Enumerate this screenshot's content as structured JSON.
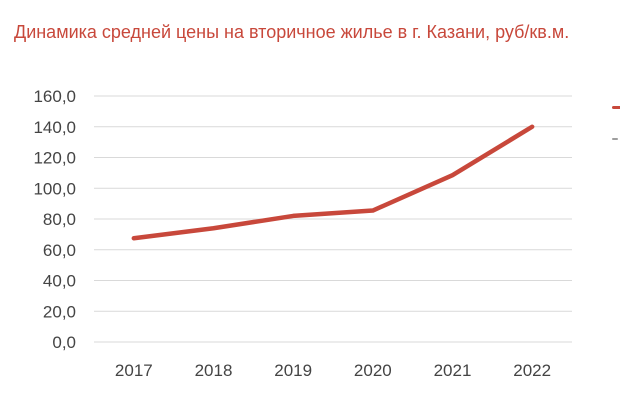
{
  "chart_data": {
    "type": "line",
    "title": "Динамика средней цены на вторичное жилье в г. Казани, руб/кв.м.",
    "xlabel": "",
    "ylabel": "",
    "categories": [
      "2017",
      "2018",
      "2019",
      "2020",
      "2021",
      "2022"
    ],
    "series": [
      {
        "values": [
          67.5,
          74.0,
          82.0,
          85.5,
          108.5,
          140.0
        ],
        "color": "#c8483b"
      }
    ],
    "ylim": [
      0,
      160
    ],
    "yticks": [
      "0,0",
      "20,0",
      "40,0",
      "60,0",
      "80,0",
      "100,0",
      "120,0",
      "140,0",
      "160,0"
    ],
    "grid": true,
    "legend": "right (cropped)"
  },
  "colors": {
    "title": "#c8483b",
    "line": "#c8483b",
    "grid": "#d9d9d9",
    "tick_text": "#444444",
    "legend_second": "#9e9e9e"
  }
}
